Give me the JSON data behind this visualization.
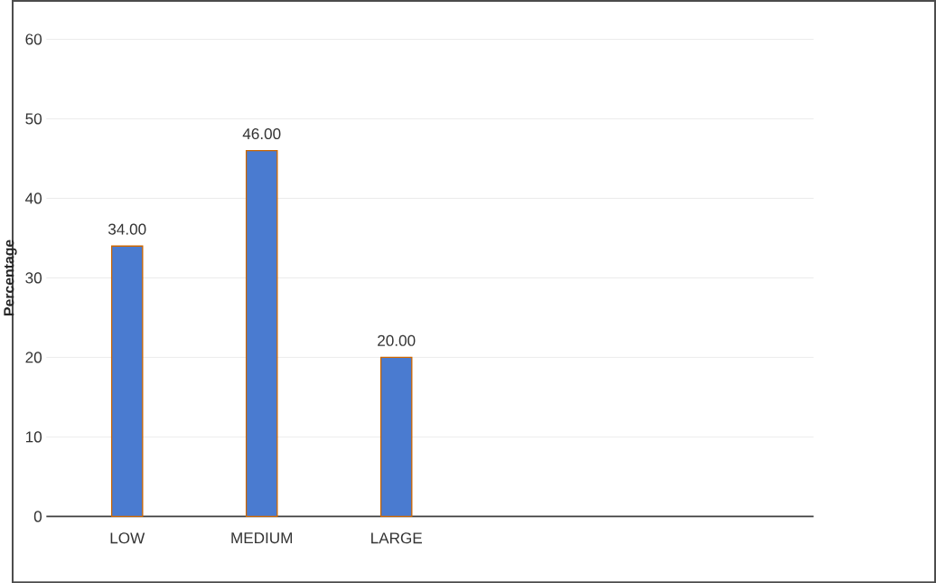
{
  "chart_data": {
    "type": "bar",
    "ylabel": "Percentage",
    "categories": [
      "LOW",
      "MEDIUM",
      "LARGE"
    ],
    "values": [
      34,
      46,
      20
    ],
    "value_labels": [
      "34.00",
      "46.00",
      "20.00"
    ],
    "color": "#4a7bd0",
    "ylim": [
      0,
      60
    ],
    "yticks": [
      0,
      10,
      20,
      30,
      40,
      50,
      60
    ],
    "grid": "y"
  }
}
